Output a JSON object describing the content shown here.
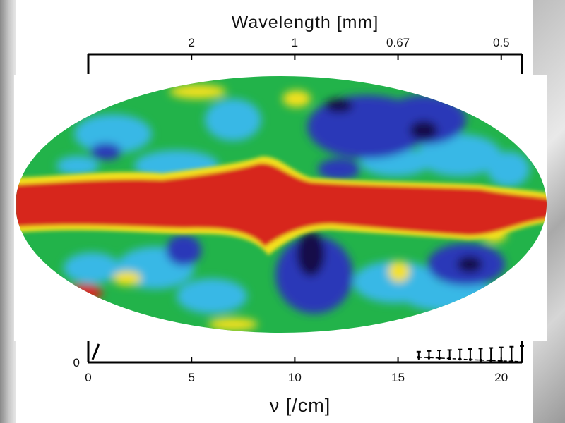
{
  "chart_data": {
    "type": "line",
    "top_axis": {
      "label": "Wavelength [mm]",
      "tick_labels": [
        "2",
        "1",
        "0.67",
        "0.5"
      ],
      "tick_values_per_cm": [
        5,
        10,
        15,
        20
      ]
    },
    "bottom_axis": {
      "label": "ν [/cm]",
      "tick_labels": [
        "0",
        "5",
        "10",
        "15",
        "20"
      ],
      "tick_values": [
        0,
        5,
        10,
        15,
        20
      ],
      "range": [
        0,
        21
      ]
    },
    "y_axis": {
      "tick_labels": [
        "0"
      ],
      "range": [
        0,
        1
      ]
    },
    "series": [
      {
        "x": [
          16.0,
          16.5,
          17.0,
          17.5,
          18.0,
          18.5,
          19.0,
          19.5,
          20.0,
          20.5,
          21.0
        ],
        "y": [
          0.08,
          0.075,
          0.068,
          0.06,
          0.052,
          0.044,
          0.036,
          0.03,
          0.024,
          0.018,
          0.012
        ]
      }
    ],
    "overlay": {
      "kind": "all-sky map (Mollweide projection)",
      "colors": [
        "#d42a16",
        "#f2e020",
        "#22b34a",
        "#38b7e0",
        "#2b3fbf",
        "#141066"
      ]
    }
  }
}
